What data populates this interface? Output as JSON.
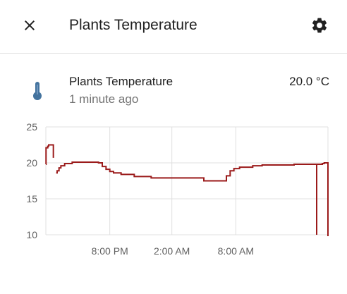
{
  "header": {
    "title": "Plants Temperature",
    "close_icon": "close-icon",
    "settings_icon": "gear-icon"
  },
  "entity": {
    "name": "Plants Temperature",
    "last_changed": "1 minute ago",
    "state": "20.0 °C",
    "icon": "thermometer-icon",
    "icon_color": "#44739e"
  },
  "chart_data": {
    "type": "line",
    "line_color": "#9b1b1b",
    "grid": true,
    "y_ticks": [
      25,
      20,
      15,
      10
    ],
    "x_ticks": [
      "8:00 PM",
      "2:00 AM",
      "8:00 AM"
    ],
    "series": [
      {
        "values": [
          [
            0,
            19.8
          ],
          [
            0.1,
            22.1
          ],
          [
            1,
            22.3
          ],
          [
            1.5,
            22.5
          ],
          [
            4,
            22.5
          ],
          [
            4,
            20.7
          ]
        ]
      },
      {
        "values": [
          [
            5.5,
            18.6
          ],
          [
            6,
            18.9
          ],
          [
            7,
            19.3
          ],
          [
            8,
            19.6
          ],
          [
            10,
            19.7
          ],
          [
            10,
            19.9
          ],
          [
            14,
            20.1
          ],
          [
            25,
            20.1
          ],
          [
            28,
            20
          ],
          [
            30,
            19.5
          ],
          [
            32,
            19.1
          ],
          [
            34,
            18.8
          ],
          [
            36,
            18.6
          ],
          [
            40,
            18.4
          ],
          [
            47,
            18.1
          ],
          [
            56,
            17.9
          ],
          [
            72,
            17.9
          ],
          [
            84,
            17.5
          ],
          [
            95,
            17.5
          ],
          [
            96,
            18.2
          ],
          [
            98,
            18.9
          ],
          [
            100,
            19.2
          ],
          [
            103,
            19.4
          ],
          [
            110,
            19.6
          ],
          [
            115,
            19.7
          ],
          [
            132,
            19.8
          ],
          [
            147,
            19.9
          ],
          [
            148,
            20
          ],
          [
            150,
            20
          ],
          [
            150,
            9.8
          ]
        ]
      },
      {
        "values": [
          [
            144,
            19.9
          ],
          [
            144,
            10
          ]
        ]
      }
    ]
  }
}
